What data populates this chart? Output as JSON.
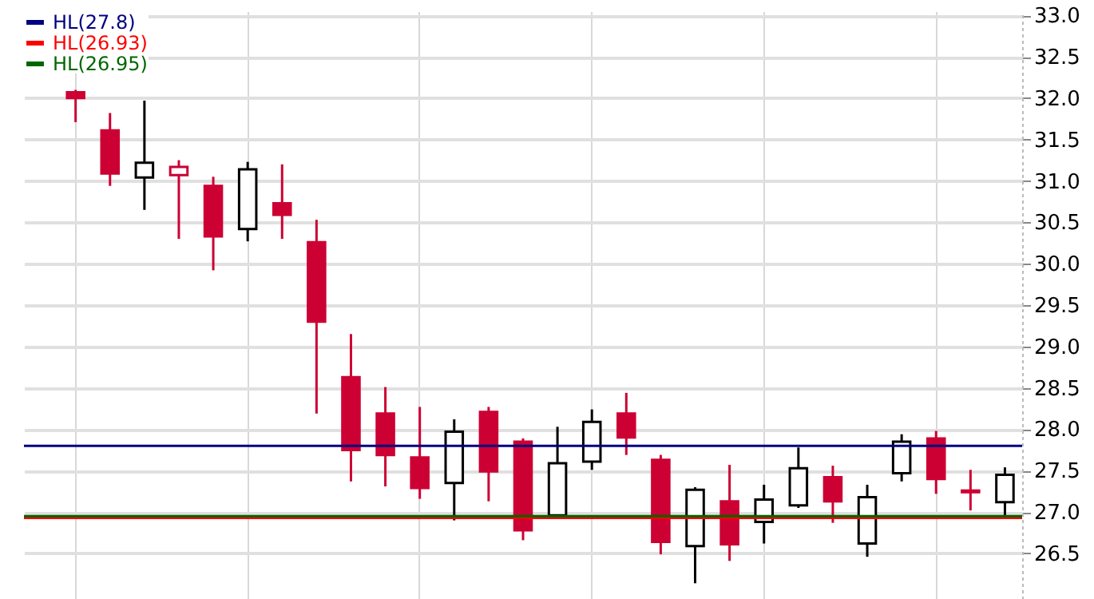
{
  "chart_data": {
    "type": "candlestick",
    "categories": [
      null,
      null,
      null,
      null,
      null,
      null,
      null,
      null,
      null,
      null,
      null,
      null,
      null,
      null,
      null,
      null,
      null,
      null,
      null,
      null,
      null,
      null,
      null,
      null,
      null,
      null,
      null,
      null,
      null
    ],
    "ohlc": [
      null,
      [
        32.07,
        32.1,
        31.71,
        32.0
      ],
      [
        31.61,
        31.82,
        30.94,
        31.09
      ],
      [
        31.04,
        31.97,
        30.65,
        31.22
      ],
      [
        31.07,
        31.25,
        30.3,
        31.17
      ],
      [
        30.94,
        31.05,
        29.92,
        30.33
      ],
      [
        30.42,
        31.23,
        30.27,
        31.14
      ],
      [
        30.73,
        31.2,
        30.3,
        30.59
      ],
      [
        30.26,
        30.53,
        28.19,
        29.3
      ],
      [
        28.63,
        29.15,
        27.37,
        27.75
      ],
      [
        28.19,
        28.51,
        27.31,
        27.69
      ],
      [
        27.66,
        28.27,
        27.16,
        27.29
      ],
      [
        27.35,
        28.12,
        26.9,
        27.97
      ],
      [
        28.21,
        28.27,
        27.13,
        27.49
      ],
      [
        27.85,
        27.89,
        26.66,
        26.78
      ],
      [
        26.96,
        28.03,
        26.96,
        27.59
      ],
      [
        27.61,
        28.24,
        27.51,
        28.09
      ],
      [
        28.19,
        28.44,
        27.69,
        27.9
      ],
      [
        27.63,
        27.69,
        26.49,
        26.64
      ],
      [
        26.59,
        27.3,
        26.14,
        27.27
      ],
      [
        27.13,
        27.57,
        26.41,
        26.61
      ],
      [
        26.88,
        27.33,
        26.62,
        27.15
      ],
      [
        27.08,
        27.78,
        27.05,
        27.53
      ],
      [
        27.42,
        27.56,
        26.87,
        27.13
      ],
      [
        26.62,
        27.33,
        26.46,
        27.18
      ],
      [
        27.47,
        27.94,
        27.37,
        27.85
      ],
      [
        27.89,
        27.98,
        27.22,
        27.4
      ],
      [
        27.26,
        27.51,
        27.02,
        27.24
      ],
      [
        27.12,
        27.54,
        26.96,
        27.45
      ]
    ],
    "colors": [
      null,
      "#cc0033",
      "#cc0033",
      "#000000",
      "#cc0033",
      "#cc0033",
      "#000000",
      "#cc0033",
      "#cc0033",
      "#cc0033",
      "#cc0033",
      "#cc0033",
      "#000000",
      "#cc0033",
      "#cc0033",
      "#000000",
      "#000000",
      "#cc0033",
      "#cc0033",
      "#000000",
      "#cc0033",
      "#000000",
      "#000000",
      "#cc0033",
      "#000000",
      "#000000",
      "#cc0033",
      "#cc0033",
      "#000000"
    ],
    "ylim": [
      25.95,
      33.05
    ],
    "yticks": [
      {
        "value": 26.5,
        "label": "26.5"
      },
      {
        "value": 27,
        "label": "27.0"
      },
      {
        "value": 27.5,
        "label": "27.5"
      },
      {
        "value": 28,
        "label": "28.0"
      },
      {
        "value": 28.5,
        "label": "28.5"
      },
      {
        "value": 29,
        "label": "29.0"
      },
      {
        "value": 29.5,
        "label": "29.5"
      },
      {
        "value": 30,
        "label": "30.0"
      },
      {
        "value": 30.5,
        "label": "30.5"
      },
      {
        "value": 31,
        "label": "31.0"
      },
      {
        "value": 31.5,
        "label": "31.5"
      },
      {
        "value": 32,
        "label": "32.0"
      },
      {
        "value": 32.5,
        "label": "32.5"
      },
      {
        "value": 33,
        "label": "33.0"
      }
    ],
    "ref_lines": [
      {
        "axis": "y",
        "value": 27.8,
        "label": "HL(27.8)",
        "color": "#000080"
      },
      {
        "axis": "y",
        "value": 26.93,
        "label": "HL(26.93)",
        "color": "#ff0000"
      },
      {
        "axis": "y",
        "value": 26.95,
        "label": "HL(26.95)",
        "color": "#006600"
      }
    ],
    "grid": true,
    "legend": "top left",
    "tick_labels": "y"
  }
}
